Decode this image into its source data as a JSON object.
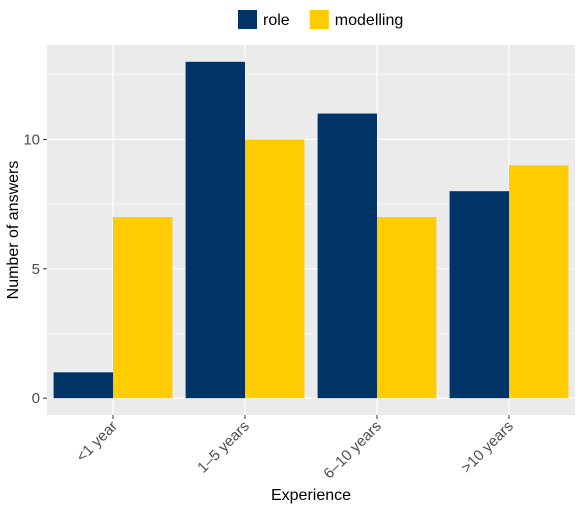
{
  "chart_data": {
    "type": "bar",
    "xlabel": "Experience",
    "ylabel": "Number of answers",
    "categories": [
      "<1 year",
      "1–5 years",
      "6–10 years",
      ">10 years"
    ],
    "series": [
      {
        "name": "role",
        "color": "#003366",
        "values": [
          1,
          13,
          11,
          8
        ]
      },
      {
        "name": "modelling",
        "color": "#ffcc00",
        "values": [
          7,
          10,
          7,
          9
        ]
      }
    ],
    "ylim": [
      -0.65,
      13.65
    ],
    "yticks": [
      0,
      5,
      10
    ],
    "grid": true,
    "legend_position": "top",
    "panel_background": "#ebebeb",
    "grid_color": "#ffffff"
  }
}
